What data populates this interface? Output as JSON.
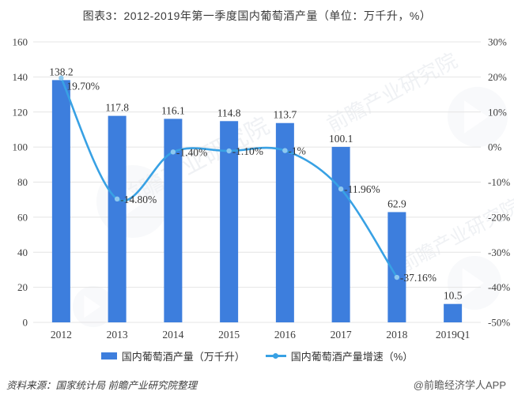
{
  "title": "图表3：2012-2019年第一季度国内葡萄酒产量（单位：万千升，%）",
  "chart_data": {
    "type": "bar+line",
    "categories": [
      "2012",
      "2013",
      "2014",
      "2015",
      "2016",
      "2017",
      "2018",
      "2019Q1"
    ],
    "series": [
      {
        "name": "国内葡萄酒产量（万千升）",
        "type": "bar",
        "axis": "left",
        "values": [
          138.2,
          117.8,
          116.1,
          114.8,
          113.7,
          100.1,
          62.9,
          10.5
        ],
        "labels": [
          "138.2",
          "117.8",
          "116.1",
          "114.8",
          "113.7",
          "100.1",
          "62.9",
          "10.5"
        ]
      },
      {
        "name": "国内葡萄酒产量增速（%）",
        "type": "line",
        "axis": "right",
        "values": [
          19.7,
          -14.8,
          -1.4,
          -1.1,
          -1,
          -11.96,
          -37.16,
          null
        ],
        "labels": [
          "19.70%",
          "-14.80%",
          "-1.40%",
          "-1.10%",
          "-1%",
          "-11.96%",
          "-37.16%",
          ""
        ]
      }
    ],
    "left_axis": {
      "min": 0,
      "max": 160,
      "step": 20,
      "ticks": [
        "160",
        "140",
        "120",
        "100",
        "80",
        "60",
        "40",
        "20",
        "0"
      ]
    },
    "right_axis": {
      "min": -50,
      "max": 30,
      "step": 10,
      "ticks": [
        "30%",
        "20%",
        "10%",
        "0%",
        "-10%",
        "-20%",
        "-30%",
        "-40%",
        "-50%"
      ]
    },
    "grid": true,
    "legend_position": "bottom"
  },
  "legend": {
    "bar_label": "国内葡萄酒产量（万千升）",
    "line_label": "国内葡萄酒产量增速（%）"
  },
  "footer": {
    "source": "资料来源：国家统计局  前瞻产业研究院整理",
    "credit": "@前瞻经济学人APP"
  },
  "watermark": {
    "text": "前瞻产业研究院"
  },
  "colors": {
    "bar": "#3d7edd",
    "line": "#38a1e4",
    "marker": "#8ec9ef",
    "grid": "#e4e4e4",
    "axis_text": "#404040",
    "value_text": "#333333",
    "watermark": "#ccd3dc"
  }
}
